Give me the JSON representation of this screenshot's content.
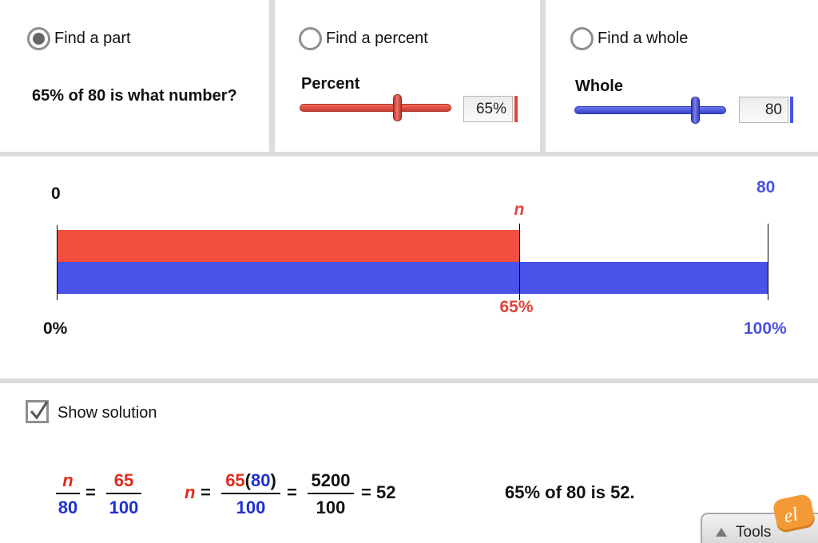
{
  "modes": [
    {
      "label": "Find a part",
      "selected": true
    },
    {
      "label": "Find a percent",
      "selected": false
    },
    {
      "label": "Find a whole",
      "selected": false
    }
  ],
  "question": "65% of 80 is what number?",
  "percent_slider": {
    "title": "Percent",
    "value_text": "65%",
    "value": 65,
    "min": 0,
    "max": 100,
    "color": "#e0443a"
  },
  "whole_slider": {
    "title": "Whole",
    "value_text": "80",
    "value": 80,
    "color": "#4a52e6"
  },
  "diagram": {
    "top_left_label": "0",
    "top_right_label": "80",
    "part_label": "n",
    "part_percent_label": "65%",
    "left_percent_label": "0%",
    "right_percent_label": "100%",
    "part_fraction": 0.65,
    "part_color": "#f44e40",
    "whole_color": "#4a52e8"
  },
  "solution": {
    "checkbox_label": "Show solution",
    "checked": true,
    "eq1": {
      "num1": "n",
      "den1": "80",
      "equals": "=",
      "num2": "65",
      "den2": "100"
    },
    "eq2": {
      "lhs": "n",
      "equals1": "=",
      "num_a": "65",
      "num_paren_open": "(",
      "num_b": "80",
      "num_paren_close": ")",
      "den": "100",
      "equals2": "=",
      "num2": "5200",
      "den2": "100",
      "result": "= 52"
    },
    "statement": "65% of 80 is 52."
  },
  "tools": {
    "label": "Tools",
    "logo_text": "el"
  }
}
